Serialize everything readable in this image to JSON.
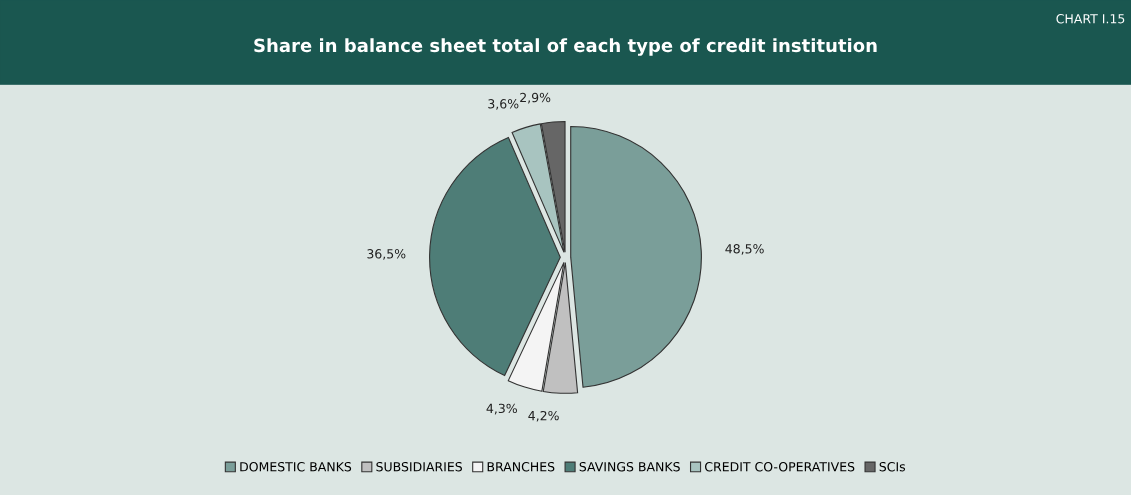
{
  "chart_data": {
    "type": "pie",
    "title": "Share in balance sheet total of each type of credit institution",
    "annotations": [
      "CHART I.15"
    ],
    "categories": [
      "DOMESTIC BANKS",
      "SUBSIDIARIES",
      "BRANCHES",
      "SAVINGS BANKS",
      "CREDIT CO-OPERATIVES",
      "SCIs"
    ],
    "values": [
      48.5,
      4.2,
      4.3,
      36.5,
      3.6,
      2.9
    ],
    "value_labels": [
      "48,5%",
      "4,2%",
      "4,3%",
      "36,5%",
      "3,6%",
      "2,9%"
    ],
    "colors": [
      "#7a9e99",
      "#c0c0c0",
      "#f4f4f4",
      "#4e7d77",
      "#a8c4c0",
      "#666666"
    ],
    "legend": "bottom"
  }
}
